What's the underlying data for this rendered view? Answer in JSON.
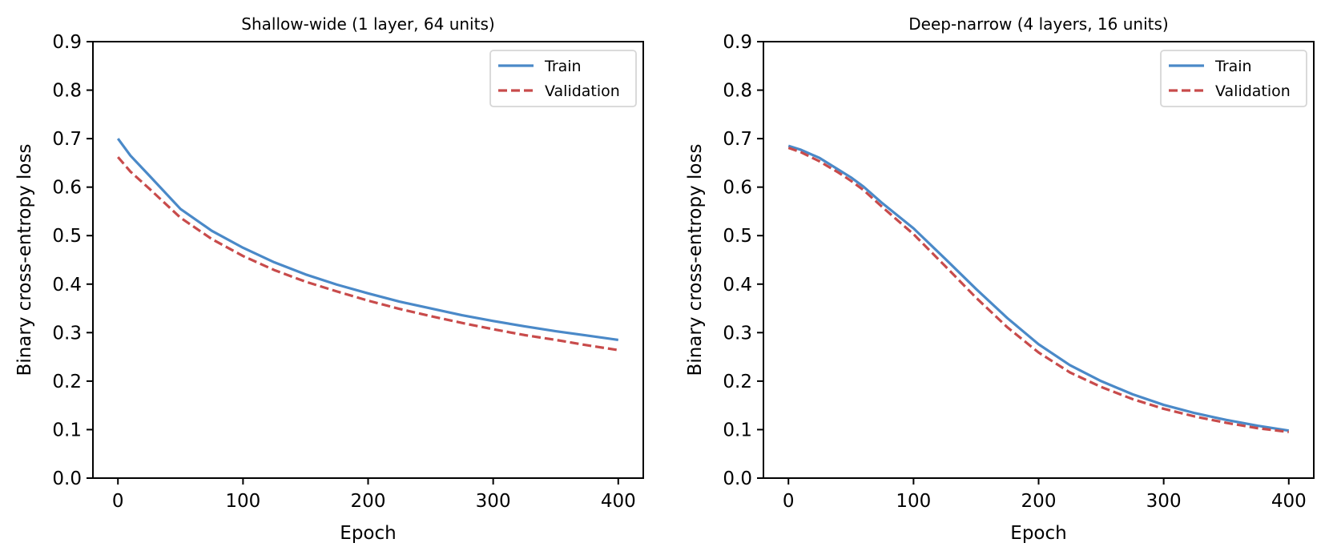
{
  "chart_data": [
    {
      "type": "line",
      "title": "Shallow-wide (1 layer, 64 units)",
      "xlabel": "Epoch",
      "ylabel": "Binary cross-entropy loss",
      "xlim": [
        -20,
        420
      ],
      "ylim": [
        0.0,
        0.9
      ],
      "xticks": [
        0,
        100,
        200,
        300,
        400
      ],
      "xtick_labels": [
        "0",
        "100",
        "200",
        "300",
        "400"
      ],
      "yticks": [
        0.0,
        0.1,
        0.2,
        0.3,
        0.4,
        0.5,
        0.6,
        0.7,
        0.8,
        0.9
      ],
      "ytick_labels": [
        "0.0",
        "0.1",
        "0.2",
        "0.3",
        "0.4",
        "0.5",
        "0.6",
        "0.7",
        "0.8",
        "0.9"
      ],
      "grid": false,
      "legend_position": "top-right",
      "x": [
        0,
        10,
        25,
        50,
        75,
        100,
        125,
        150,
        175,
        200,
        225,
        250,
        275,
        300,
        325,
        350,
        375,
        400
      ],
      "series": [
        {
          "name": "Train",
          "style": "solid",
          "color": "#4a89c8",
          "values": [
            0.7,
            0.665,
            0.624,
            0.555,
            0.51,
            0.475,
            0.445,
            0.42,
            0.399,
            0.381,
            0.364,
            0.35,
            0.336,
            0.324,
            0.313,
            0.303,
            0.294,
            0.285
          ]
        },
        {
          "name": "Validation",
          "style": "dashed",
          "color": "#c84b4b",
          "values": [
            0.662,
            0.632,
            0.597,
            0.537,
            0.493,
            0.458,
            0.429,
            0.405,
            0.385,
            0.366,
            0.349,
            0.334,
            0.32,
            0.307,
            0.295,
            0.285,
            0.274,
            0.264
          ]
        }
      ]
    },
    {
      "type": "line",
      "title": "Deep-narrow (4 layers, 16 units)",
      "xlabel": "Epoch",
      "ylabel": "Binary cross-entropy loss",
      "xlim": [
        -20,
        420
      ],
      "ylim": [
        0.0,
        0.9
      ],
      "xticks": [
        0,
        100,
        200,
        300,
        400
      ],
      "xtick_labels": [
        "0",
        "100",
        "200",
        "300",
        "400"
      ],
      "yticks": [
        0.0,
        0.1,
        0.2,
        0.3,
        0.4,
        0.5,
        0.6,
        0.7,
        0.8,
        0.9
      ],
      "ytick_labels": [
        "0.0",
        "0.1",
        "0.2",
        "0.3",
        "0.4",
        "0.5",
        "0.6",
        "0.7",
        "0.8",
        "0.9"
      ],
      "grid": false,
      "legend_position": "top-right",
      "x": [
        0,
        10,
        25,
        40,
        50,
        60,
        75,
        100,
        125,
        150,
        175,
        200,
        225,
        250,
        275,
        300,
        325,
        350,
        375,
        400
      ],
      "series": [
        {
          "name": "Train",
          "style": "solid",
          "color": "#4a89c8",
          "values": [
            0.685,
            0.677,
            0.66,
            0.636,
            0.62,
            0.601,
            0.567,
            0.515,
            0.453,
            0.39,
            0.33,
            0.276,
            0.233,
            0.2,
            0.173,
            0.151,
            0.134,
            0.12,
            0.108,
            0.098
          ]
        },
        {
          "name": "Validation",
          "style": "dashed",
          "color": "#c84b4b",
          "values": [
            0.681,
            0.672,
            0.653,
            0.63,
            0.613,
            0.594,
            0.559,
            0.503,
            0.438,
            0.372,
            0.311,
            0.259,
            0.218,
            0.188,
            0.163,
            0.143,
            0.127,
            0.114,
            0.103,
            0.095
          ]
        }
      ]
    }
  ]
}
